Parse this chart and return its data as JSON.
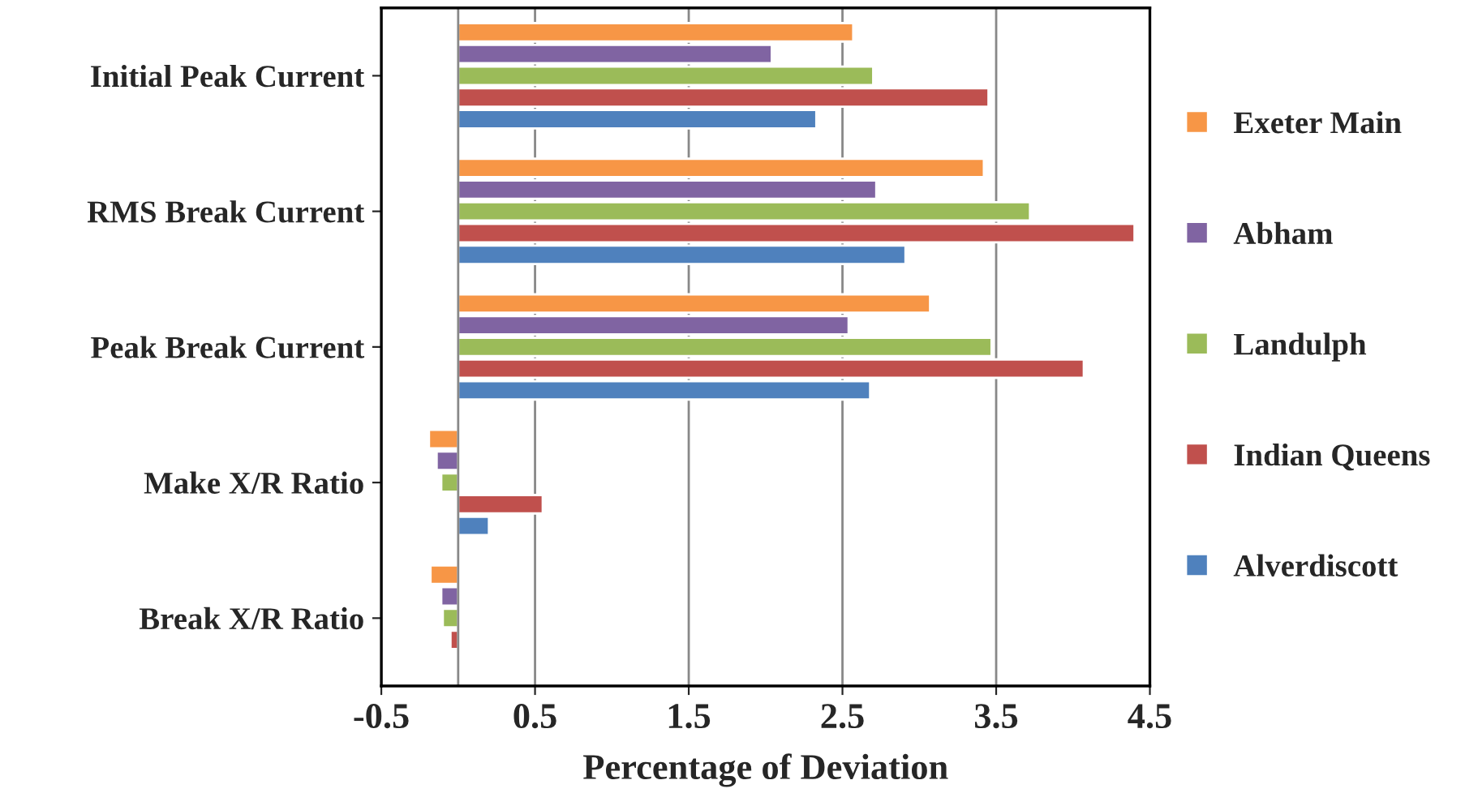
{
  "chart_data": {
    "type": "bar",
    "orientation": "horizontal",
    "xlabel": "Percentage of Deviation",
    "categories": [
      "Initial Peak Current",
      "RMS Break Current",
      "Peak Break Current",
      "Make X/R Ratio",
      "Break X/R Ratio"
    ],
    "series": [
      {
        "name": "Exeter Main",
        "color": "#f79646",
        "values": [
          2.57,
          3.42,
          3.07,
          -0.19,
          -0.18
        ]
      },
      {
        "name": "Abham",
        "color": "#8064a2",
        "values": [
          2.04,
          2.72,
          2.54,
          -0.14,
          -0.11
        ]
      },
      {
        "name": "Landulph",
        "color": "#9bbb59",
        "values": [
          2.7,
          3.72,
          3.47,
          -0.11,
          -0.1
        ]
      },
      {
        "name": "Indian Queens",
        "color": "#c0504d",
        "values": [
          3.45,
          4.4,
          4.07,
          0.55,
          -0.05
        ]
      },
      {
        "name": "Alverdiscott",
        "color": "#4f81bd",
        "values": [
          2.33,
          2.91,
          2.68,
          0.2,
          null
        ]
      }
    ],
    "xlim": [
      -0.5,
      4.5
    ],
    "xticks": [
      -0.5,
      0.5,
      1.5,
      2.5,
      3.5,
      4.5
    ],
    "grid": "x",
    "legend": "right"
  }
}
